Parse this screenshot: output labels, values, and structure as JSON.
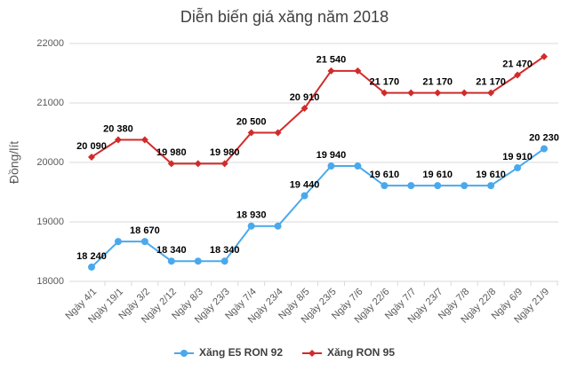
{
  "chart_data": {
    "type": "line",
    "title": "Diễn biến giá xăng năm 2018",
    "y_label": "Đồng/lít",
    "categories": [
      "Ngày 4/1",
      "Ngày 19/1",
      "Ngày 3/2",
      "Ngày 2/12",
      "Ngày 8/3",
      "Ngày 23/3",
      "Ngày 7/4",
      "Ngày 23/4",
      "Ngày 8/5",
      "Ngày 23/5",
      "Ngày 7/6",
      "Ngày 22/6",
      "Ngày 7/7",
      "Ngày 23/7",
      "Ngày 7/8",
      "Ngày 22/8",
      "Ngày 6/9",
      "Ngày 21/9"
    ],
    "series": [
      {
        "name": "Xăng E5 RON 92",
        "color": "#4aa9ec",
        "marker": "circle",
        "values": [
          18240,
          18670,
          18670,
          18340,
          18340,
          18340,
          18930,
          18930,
          19440,
          19940,
          19940,
          19610,
          19610,
          19610,
          19610,
          19610,
          19910,
          20230
        ],
        "value_labels": [
          "18 240",
          null,
          "18 670",
          "18 340",
          null,
          "18 340",
          "18 930",
          null,
          "19 440",
          "19 940",
          null,
          "19 610",
          null,
          "19 610",
          null,
          "19 610",
          "19 910",
          "20 230"
        ]
      },
      {
        "name": "Xăng RON 95",
        "color": "#d12b2b",
        "marker": "diamond",
        "values": [
          20090,
          20380,
          20380,
          19980,
          19980,
          19980,
          20500,
          20500,
          20910,
          21540,
          21540,
          21170,
          21170,
          21170,
          21170,
          21170,
          21470,
          21780
        ],
        "value_labels": [
          "20 090",
          "20 380",
          null,
          "19 980",
          null,
          "19 980",
          "20 500",
          null,
          "20 910",
          "21 540",
          null,
          "21 170",
          null,
          "21 170",
          null,
          "21 170",
          "21 470",
          null
        ]
      }
    ],
    "ylim": [
      18000,
      22000
    ],
    "yticks": [
      18000,
      19000,
      20000,
      21000,
      22000
    ],
    "grid": true,
    "legend": "bottom"
  }
}
